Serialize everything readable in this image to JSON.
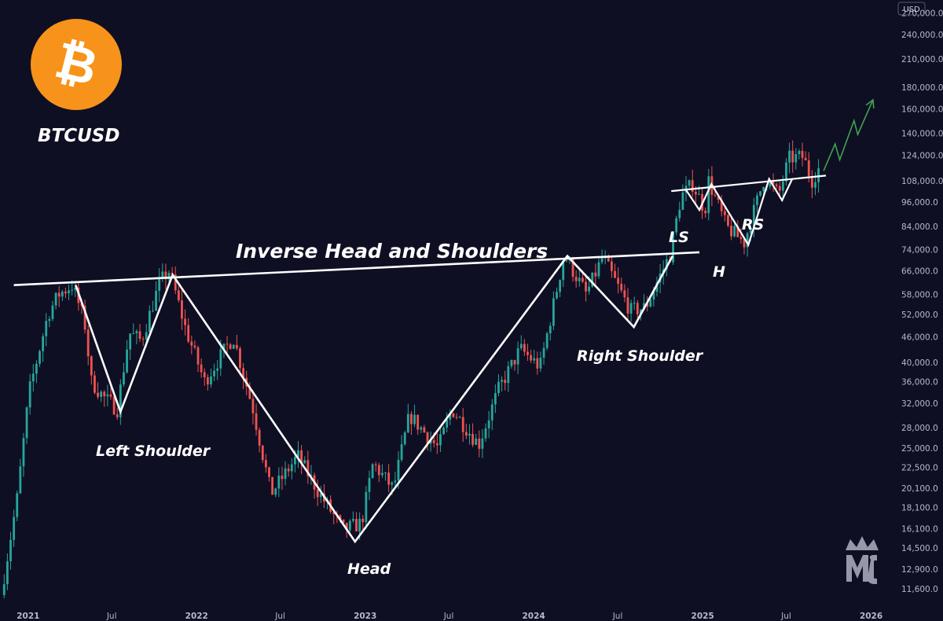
{
  "ticker": "BTCUSD",
  "currency_badge": "USD",
  "colors": {
    "background": "#0f0f24",
    "up_candle": "#26a69a",
    "down_candle": "#ef5350",
    "pattern_lines": "#ffffff",
    "projection_arrow": "#3fa34d",
    "bitcoin_logo": "#f7931a"
  },
  "icons": {
    "brand_logo": "bitcoin-icon",
    "watermark": "mc-crown-logo"
  },
  "annotations": {
    "title": "Inverse Head and Shoulders",
    "left_shoulder": "Left Shoulder",
    "head": "Head",
    "right_shoulder": "Right Shoulder",
    "ls": "LS",
    "h": "H",
    "rs": "RS"
  },
  "chart_data": {
    "type": "candlestick",
    "y_scale": "log",
    "ylim": [
      10500,
      290000
    ],
    "xlim": [
      "2020-11-01",
      "2026-02-15"
    ],
    "y_ticks": [
      "270,000.0",
      "240,000.0",
      "210,000.0",
      "180,000.0",
      "160,000.0",
      "140,000.0",
      "124,000.0",
      "108,000.0",
      "96,000.0",
      "84,000.0",
      "74,000.0",
      "66,000.0",
      "58,000.0",
      "52,000.0",
      "46,000.0",
      "40,000.0",
      "36,000.0",
      "32,000.0",
      "28,000.0",
      "25,000.0",
      "22,500.0",
      "20,100.0",
      "18,100.0",
      "16,100.0",
      "14,500.0",
      "12,900.0",
      "11,600.0"
    ],
    "x_ticks": [
      {
        "label": "2021",
        "date": "2021-01-01",
        "year": true
      },
      {
        "label": "Jul",
        "date": "2021-07-01",
        "year": false
      },
      {
        "label": "2022",
        "date": "2022-01-01",
        "year": true
      },
      {
        "label": "Jul",
        "date": "2022-07-01",
        "year": false
      },
      {
        "label": "2023",
        "date": "2023-01-01",
        "year": true
      },
      {
        "label": "Jul",
        "date": "2023-07-01",
        "year": false
      },
      {
        "label": "2024",
        "date": "2024-01-01",
        "year": true
      },
      {
        "label": "Jul",
        "date": "2024-07-01",
        "year": false
      },
      {
        "label": "2025",
        "date": "2025-01-01",
        "year": true
      },
      {
        "label": "Jul",
        "date": "2025-07-01",
        "year": false
      },
      {
        "label": "2026",
        "date": "2026-01-01",
        "year": true
      }
    ],
    "price_path": [
      [
        "2020-11-10",
        11200
      ],
      [
        "2020-12-15",
        19000
      ],
      [
        "2021-01-10",
        34000
      ],
      [
        "2021-02-20",
        52000
      ],
      [
        "2021-03-15",
        58000
      ],
      [
        "2021-04-14",
        61000
      ],
      [
        "2021-05-10",
        50000
      ],
      [
        "2021-05-25",
        36000
      ],
      [
        "2021-06-21",
        33000
      ],
      [
        "2021-07-20",
        31000
      ],
      [
        "2021-08-15",
        47000
      ],
      [
        "2021-09-10",
        45000
      ],
      [
        "2021-10-20",
        62000
      ],
      [
        "2021-11-10",
        66000
      ],
      [
        "2021-12-15",
        48000
      ],
      [
        "2022-01-25",
        36000
      ],
      [
        "2022-03-28",
        46000
      ],
      [
        "2022-05-10",
        31000
      ],
      [
        "2022-06-18",
        19500
      ],
      [
        "2022-08-15",
        24000
      ],
      [
        "2022-10-01",
        19500
      ],
      [
        "2022-11-21",
        16000
      ],
      [
        "2022-12-31",
        16600
      ],
      [
        "2023-01-25",
        23000
      ],
      [
        "2023-03-10",
        20000
      ],
      [
        "2023-04-14",
        30000
      ],
      [
        "2023-06-15",
        25000
      ],
      [
        "2023-07-15",
        31000
      ],
      [
        "2023-09-11",
        25500
      ],
      [
        "2023-10-24",
        34500
      ],
      [
        "2023-12-10",
        43000
      ],
      [
        "2024-01-22",
        39000
      ],
      [
        "2024-03-14",
        72000
      ],
      [
        "2024-05-01",
        58000
      ],
      [
        "2024-06-05",
        71000
      ],
      [
        "2024-08-05",
        53000
      ],
      [
        "2024-09-06",
        54000
      ],
      [
        "2024-10-29",
        72000
      ],
      [
        "2024-11-22",
        99000
      ],
      [
        "2024-12-17",
        106000
      ],
      [
        "2025-01-13",
        92000
      ],
      [
        "2025-01-21",
        108000
      ],
      [
        "2025-02-28",
        84000
      ],
      [
        "2025-04-08",
        77000
      ],
      [
        "2025-05-22",
        110000
      ],
      [
        "2025-06-22",
        100000
      ],
      [
        "2025-07-14",
        122000
      ],
      [
        "2025-08-14",
        123000
      ],
      [
        "2025-09-01",
        108000
      ],
      [
        "2025-09-15",
        115000
      ]
    ],
    "pattern_lines": {
      "major_neckline": [
        [
          "2020-12-01",
          61000
        ],
        [
          "2024-12-25",
          73000
        ]
      ],
      "major_pattern": [
        [
          "2021-04-14",
          61000
        ],
        [
          "2021-07-20",
          30500
        ],
        [
          "2021-11-10",
          64500
        ],
        [
          "2022-12-10",
          15000
        ],
        [
          "2024-03-14",
          71500
        ],
        [
          "2024-08-05",
          48500
        ],
        [
          "2024-10-28",
          71500
        ]
      ],
      "minor_neckline": [
        [
          "2024-10-25",
          102000
        ],
        [
          "2025-09-25",
          111000
        ]
      ],
      "minor_pattern": [
        [
          "2024-11-25",
          103000
        ],
        [
          "2024-12-25",
          92000
        ],
        [
          "2025-01-20",
          106000
        ],
        [
          "2025-04-10",
          76000
        ],
        [
          "2025-05-25",
          109000
        ],
        [
          "2025-06-22",
          97000
        ],
        [
          "2025-07-14",
          109000
        ]
      ]
    },
    "projection": [
      [
        "2025-09-20",
        114000
      ],
      [
        "2025-10-15",
        132000
      ],
      [
        "2025-10-25",
        121000
      ],
      [
        "2025-11-25",
        150000
      ],
      [
        "2025-12-03",
        139000
      ],
      [
        "2026-01-05",
        168000
      ]
    ]
  }
}
